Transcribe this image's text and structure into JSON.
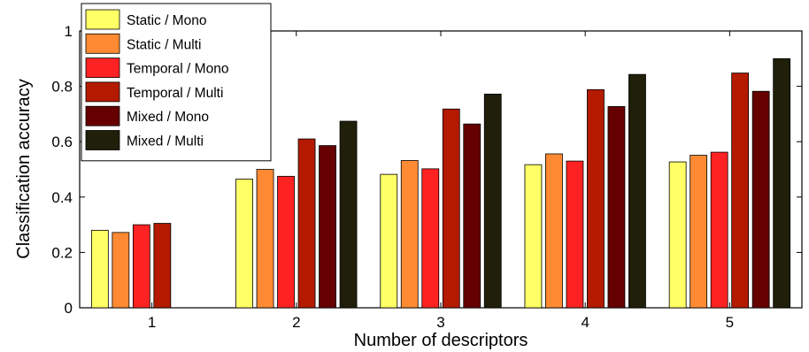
{
  "chart_data": {
    "type": "bar",
    "xlabel": "Number of descriptors",
    "ylabel": "Classification accuracy",
    "ylim": [
      0,
      1
    ],
    "yticks": [
      "0",
      "0.2",
      "0.4",
      "0.6",
      "0.8",
      "1"
    ],
    "categories": [
      "1",
      "2",
      "3",
      "4",
      "5"
    ],
    "grid": false,
    "legend_position": "top-left",
    "series": [
      {
        "name": "Static / Mono",
        "color": "#ffff66",
        "values": [
          0.28,
          0.465,
          0.482,
          0.517,
          0.527
        ]
      },
      {
        "name": "Static / Multi",
        "color": "#ff8a33",
        "values": [
          0.272,
          0.5,
          0.532,
          0.556,
          0.551
        ]
      },
      {
        "name": "Temporal / Mono",
        "color": "#ff2222",
        "values": [
          0.3,
          0.475,
          0.502,
          0.53,
          0.562
        ]
      },
      {
        "name": "Temporal / Multi",
        "color": "#b31a00",
        "values": [
          0.305,
          0.61,
          0.718,
          0.788,
          0.848
        ]
      },
      {
        "name": "Mixed / Mono",
        "color": "#660000",
        "values": [
          null,
          0.586,
          0.664,
          0.727,
          0.782
        ]
      },
      {
        "name": "Mixed / Multi",
        "color": "#1f1f0a",
        "values": [
          null,
          0.674,
          0.772,
          0.843,
          0.9
        ]
      }
    ]
  }
}
